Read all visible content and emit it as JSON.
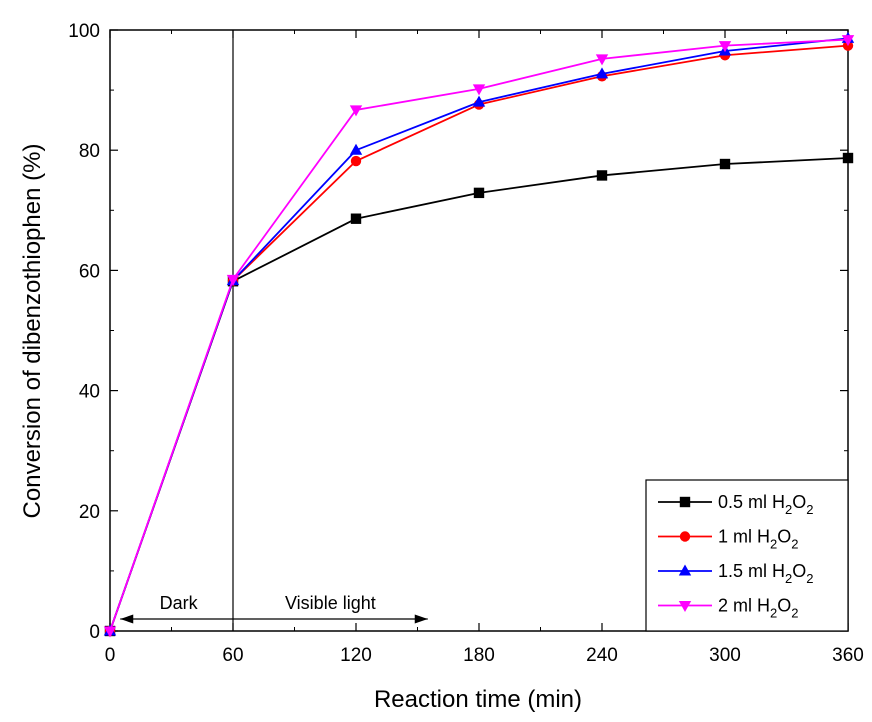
{
  "chart_data": {
    "type": "line",
    "title": "",
    "xlabel": "Reaction time (min)",
    "ylabel": "Conversion of dibenzothiophen (%)",
    "xlim": [
      0,
      360
    ],
    "ylim": [
      0,
      100
    ],
    "xticks": [
      0,
      60,
      120,
      180,
      240,
      300,
      360
    ],
    "yticks": [
      0,
      20,
      40,
      60,
      80,
      100
    ],
    "x": [
      0,
      60,
      120,
      180,
      240,
      300,
      360
    ],
    "grid": false,
    "legend_position": "bottom-right",
    "series": [
      {
        "name": "0.5 ml H2O2",
        "legend_base": "0.5 ml H",
        "color": "#000000",
        "marker": "square",
        "values": [
          0,
          58.2,
          68.6,
          72.9,
          75.8,
          77.7,
          78.7
        ]
      },
      {
        "name": "1 ml H2O2",
        "legend_base": "1 ml H",
        "color": "#ff0000",
        "marker": "circle",
        "values": [
          0,
          58.3,
          78.2,
          87.6,
          92.3,
          95.8,
          97.4
        ]
      },
      {
        "name": "1.5 ml H2O2",
        "legend_base": "1.5 ml H",
        "color": "#0000ff",
        "marker": "triangle-up",
        "values": [
          0,
          58.3,
          80.0,
          88.0,
          92.7,
          96.5,
          98.6
        ]
      },
      {
        "name": "2 ml H2O2",
        "legend_base": "2 ml H",
        "color": "#ff00ff",
        "marker": "triangle-down",
        "values": [
          0,
          58.5,
          86.7,
          90.2,
          95.2,
          97.4,
          98.4
        ]
      }
    ],
    "divider_x": 60,
    "annotations": {
      "dark": "Dark",
      "visible": "Visible light"
    },
    "arrows": [
      {
        "from": 60,
        "to": 5
      },
      {
        "from": 60,
        "to": 155
      }
    ],
    "formula_sub": "2",
    "formula_end": "O"
  }
}
